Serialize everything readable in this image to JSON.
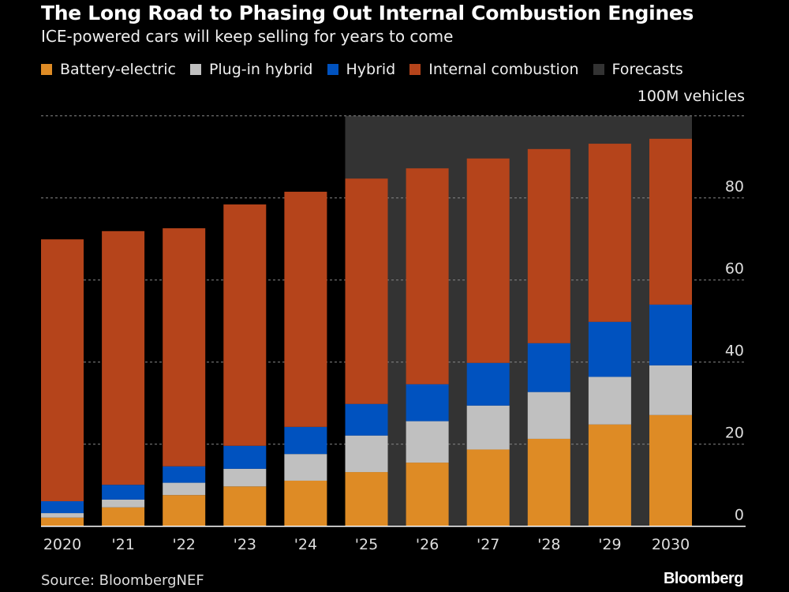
{
  "header": {
    "title": "The Long Road to Phasing Out Internal Combustion Engines",
    "subtitle": "ICE-powered cars will keep selling for years to come"
  },
  "legend": [
    {
      "label": "Battery-electric",
      "color": "#de8b25"
    },
    {
      "label": "Plug-in hybrid",
      "color": "#c0c0c0"
    },
    {
      "label": "Hybrid",
      "color": "#0052bf"
    },
    {
      "label": "Internal combustion",
      "color": "#b5441b"
    },
    {
      "label": "Forecasts",
      "color": "#333333"
    }
  ],
  "footer": {
    "source": "Source: BloombergNEF",
    "logo": "Bloomberg"
  },
  "chart_data": {
    "type": "bar",
    "stacked": true,
    "title": "The Long Road to Phasing Out Internal Combustion Engines",
    "subtitle": "ICE-powered cars will keep selling for years to come",
    "ylabel": "100M vehicles",
    "ylim": [
      0,
      100
    ],
    "yticks": [
      0,
      20,
      40,
      60,
      80
    ],
    "grid": true,
    "legend_position": "top",
    "categories": [
      "2020",
      "'21",
      "'22",
      "'23",
      "'24",
      "'25",
      "'26",
      "'27",
      "'28",
      "'29",
      "2030"
    ],
    "forecast_from": "'25",
    "series": [
      {
        "name": "Battery-electric",
        "color": "#de8b25",
        "values": [
          2.1,
          4.6,
          7.6,
          9.7,
          11.1,
          13.2,
          15.5,
          18.7,
          21.3,
          24.8,
          27.1
        ]
      },
      {
        "name": "Plug-in hybrid",
        "color": "#c0c0c0",
        "values": [
          1.1,
          1.9,
          3.0,
          4.3,
          6.5,
          8.9,
          10.1,
          10.7,
          11.4,
          11.6,
          12.1
        ]
      },
      {
        "name": "Hybrid",
        "color": "#0052bf",
        "values": [
          2.9,
          3.6,
          4.0,
          5.6,
          6.6,
          7.7,
          9.0,
          10.4,
          11.9,
          13.4,
          14.8
        ]
      },
      {
        "name": "Internal combustion",
        "color": "#b5441b",
        "values": [
          63.8,
          61.8,
          58.0,
          58.8,
          57.3,
          54.9,
          52.6,
          49.8,
          47.3,
          43.4,
          40.4
        ]
      }
    ]
  }
}
